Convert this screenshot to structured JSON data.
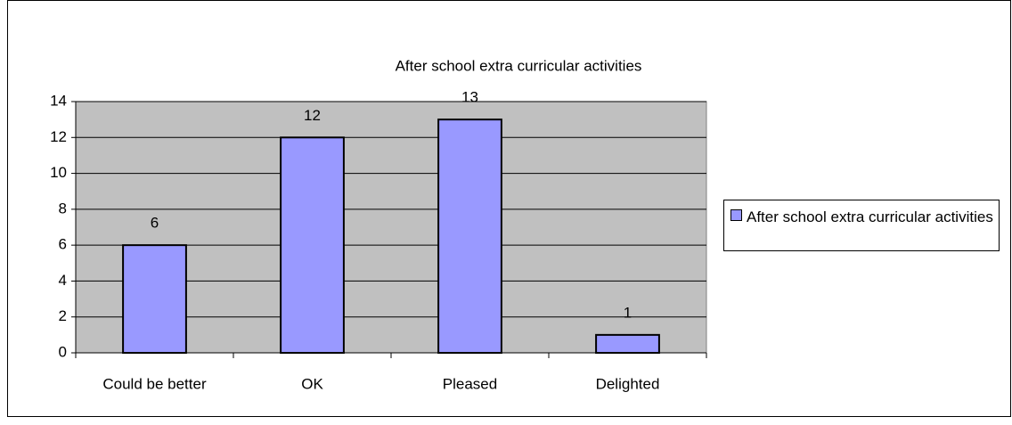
{
  "chart_data": {
    "type": "bar",
    "title": "After school extra curricular activities",
    "categories": [
      "Could be better",
      "OK",
      "Pleased",
      "Delighted"
    ],
    "series": [
      {
        "name": "After school extra curricular activities",
        "color": "#9999ff",
        "values": [
          6,
          12,
          13,
          1
        ]
      }
    ],
    "ylim": [
      0,
      14
    ],
    "yticks": [
      0,
      2,
      4,
      6,
      8,
      10,
      12,
      14
    ],
    "grid": true,
    "legend": "right"
  }
}
